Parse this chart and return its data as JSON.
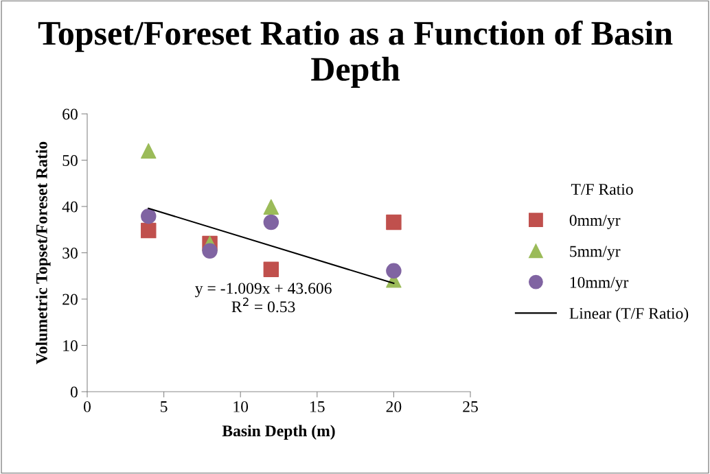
{
  "chart_data": {
    "type": "scatter",
    "title": "Topset/Foreset Ratio as a Function of Basin Depth",
    "xlabel": "Basin Depth (m)",
    "ylabel": "Volumetric Topset/Foreset Ratio",
    "legend_title": "T/F Ratio",
    "x": [
      4,
      8,
      12,
      20
    ],
    "series": [
      {
        "name": "0mm/yr",
        "color": "#c0504d",
        "marker": "square",
        "values": [
          34.8,
          32.0,
          26.4,
          36.6
        ]
      },
      {
        "name": "5mm/yr",
        "color": "#9bbb59",
        "marker": "triangle",
        "values": [
          52.0,
          32.0,
          39.9,
          24.1
        ]
      },
      {
        "name": "10mm/yr",
        "color": "#8064a2",
        "marker": "circle",
        "values": [
          37.9,
          30.4,
          36.6,
          26.1
        ]
      },
      {
        "name": "Linear (T/F Ratio)",
        "type": "line",
        "color": "#000000",
        "marker": "none",
        "x": [
          4,
          20
        ],
        "values": [
          39.6,
          23.4
        ]
      }
    ],
    "annotations": [
      "y = -1.009x + 43.606\nR$^{2}$ = 0.53"
    ],
    "xlim": [
      0,
      25
    ],
    "xticks": [
      0,
      5,
      10,
      15,
      20,
      25
    ],
    "ylim": [
      0,
      60
    ],
    "yticks": [
      0,
      10,
      20,
      30,
      40,
      50,
      60
    ],
    "grid": false,
    "legend": "right"
  }
}
